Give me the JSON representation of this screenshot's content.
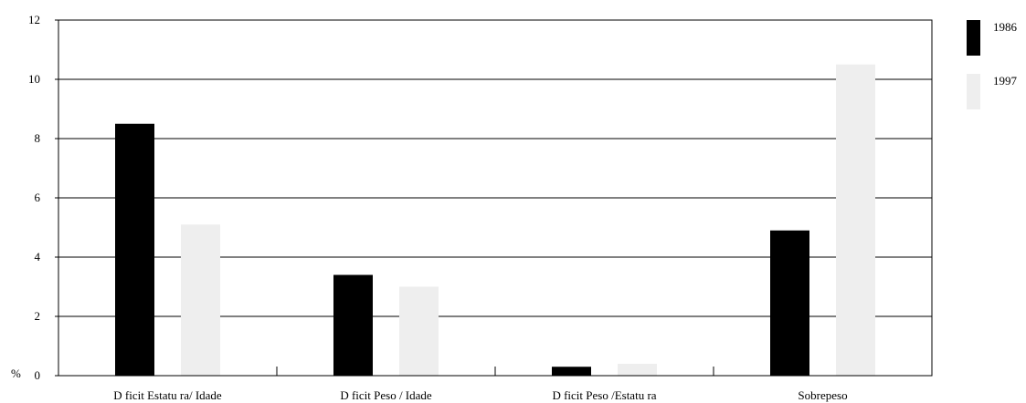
{
  "chart_data": {
    "type": "bar",
    "title": "",
    "xlabel": "",
    "ylabel": "%",
    "ylim": [
      0,
      12
    ],
    "yticks": [
      0,
      2,
      4,
      6,
      8,
      10,
      12
    ],
    "grid": true,
    "legend_position": "right",
    "categories": [
      "D  ficit Estatu ra/ Idade",
      "D  ficit Peso / Idade",
      "D  ficit Peso /Estatu ra",
      "Sobrepeso"
    ],
    "series": [
      {
        "name": "1986",
        "color": "#000000",
        "values": [
          8.5,
          3.4,
          0.3,
          4.9
        ]
      },
      {
        "name": "1997",
        "color": "#eeeeee",
        "values": [
          5.1,
          3.0,
          0.4,
          10.5
        ]
      }
    ]
  }
}
